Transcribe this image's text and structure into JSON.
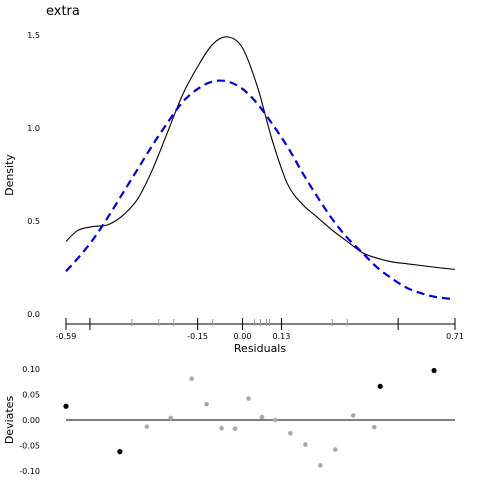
{
  "chart_data": [
    {
      "type": "line",
      "title": "extra",
      "xlabel": "Residuals",
      "ylabel": "Density",
      "xlim": [
        -0.59,
        0.71
      ],
      "ylim": [
        0,
        1.5
      ],
      "x_tick_labels": [
        "-0.59",
        "-0.15",
        "0.00",
        "0.13",
        "0.71"
      ],
      "y_tick_labels": [
        "0.0",
        "0.5",
        "1.0",
        "1.5"
      ],
      "grid": false,
      "series": [
        {
          "style": "solid",
          "color": "#000000",
          "x": [
            -0.59,
            -0.55,
            -0.5,
            -0.45,
            -0.4,
            -0.35,
            -0.3,
            -0.25,
            -0.2,
            -0.15,
            -0.1,
            -0.05,
            0.0,
            0.05,
            0.1,
            0.15,
            0.2,
            0.25,
            0.3,
            0.35,
            0.4,
            0.45,
            0.5,
            0.55,
            0.6,
            0.65,
            0.71
          ],
          "y": [
            0.39,
            0.45,
            0.47,
            0.48,
            0.53,
            0.62,
            0.78,
            0.98,
            1.18,
            1.33,
            1.45,
            1.49,
            1.43,
            1.22,
            0.93,
            0.7,
            0.59,
            0.52,
            0.45,
            0.39,
            0.33,
            0.3,
            0.28,
            0.27,
            0.26,
            0.25,
            0.24
          ]
        },
        {
          "style": "dashed",
          "color": "#0000dd",
          "x": [
            -0.59,
            -0.55,
            -0.5,
            -0.45,
            -0.4,
            -0.35,
            -0.3,
            -0.25,
            -0.2,
            -0.15,
            -0.1,
            -0.05,
            0.0,
            0.05,
            0.1,
            0.15,
            0.2,
            0.25,
            0.3,
            0.35,
            0.4,
            0.45,
            0.5,
            0.55,
            0.6,
            0.65,
            0.71
          ],
          "y": [
            0.23,
            0.3,
            0.4,
            0.52,
            0.65,
            0.78,
            0.91,
            1.03,
            1.14,
            1.21,
            1.25,
            1.25,
            1.21,
            1.13,
            1.02,
            0.9,
            0.76,
            0.63,
            0.51,
            0.41,
            0.33,
            0.25,
            0.19,
            0.14,
            0.11,
            0.09,
            0.08
          ]
        }
      ],
      "rug": [
        -0.59,
        -0.51,
        -0.37,
        -0.28,
        -0.23,
        -0.15,
        -0.1,
        0.0,
        0.04,
        0.06,
        0.08,
        0.09,
        0.13,
        0.3,
        0.35,
        0.52,
        0.71
      ]
    },
    {
      "type": "scatter",
      "title": "",
      "xlabel": "",
      "ylabel": "Deviates",
      "xlim": [
        -0.59,
        0.71
      ],
      "ylim": [
        -0.1,
        0.1
      ],
      "y_tick_labels": [
        "0.10",
        "0.05",
        "0.00",
        "-0.05",
        "-0.10"
      ],
      "zero_line": true,
      "series": [
        {
          "name": "",
          "color": "#000000",
          "x": [
            -0.59,
            -0.41,
            0.46,
            0.64
          ],
          "y": [
            0.027,
            -0.062,
            0.066,
            0.097
          ]
        },
        {
          "name": "",
          "color": "#a9a9a9",
          "x": [
            -0.32,
            -0.24,
            -0.17,
            -0.12,
            -0.07,
            -0.025,
            0.02,
            0.065,
            0.11,
            0.16,
            0.21,
            0.26,
            0.31,
            0.37,
            0.44
          ],
          "y": [
            -0.013,
            0.004,
            0.081,
            0.031,
            -0.016,
            -0.017,
            0.042,
            0.006,
            0.0,
            -0.026,
            -0.048,
            -0.089,
            -0.058,
            0.009,
            -0.014
          ]
        }
      ]
    }
  ]
}
